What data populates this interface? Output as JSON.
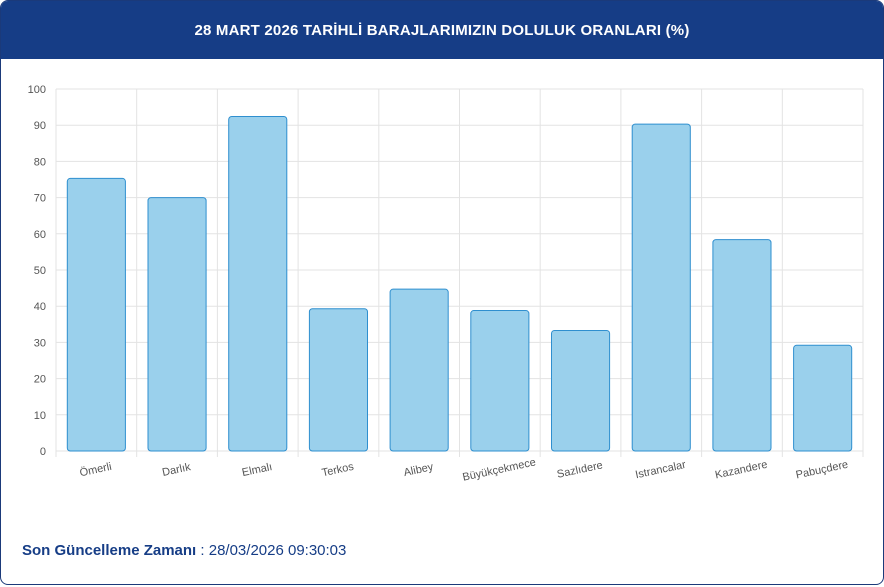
{
  "header": {
    "title": "28 MART 2026 TARİHLİ BARAJLARIMIZIN DOLULUK ORANLARI (%)"
  },
  "footer": {
    "label": "Son Güncelleme Zamanı",
    "separator": " : ",
    "value": "28/03/2026 09:30:03"
  },
  "colors": {
    "header_bg": "#163d86",
    "bar_fill": "#9ad0ec",
    "bar_stroke": "#2f8fcf",
    "grid": "#e3e3e3",
    "axis_text": "#555555"
  },
  "chart_data": {
    "type": "bar",
    "title": "",
    "xlabel": "",
    "ylabel": "",
    "ylim": [
      0,
      100
    ],
    "yticks": [
      0,
      10,
      20,
      30,
      40,
      50,
      60,
      70,
      80,
      90,
      100
    ],
    "grid": true,
    "categories": [
      "Ömerli",
      "Darlık",
      "Elmalı",
      "Terkos",
      "Alibey",
      "Büyükçekmece",
      "Sazlıdere",
      "Istrancalar",
      "Kazandere",
      "Pabuçdere"
    ],
    "values": [
      75.3,
      70.0,
      92.4,
      39.3,
      44.7,
      38.8,
      33.3,
      90.3,
      58.4,
      29.2
    ]
  }
}
